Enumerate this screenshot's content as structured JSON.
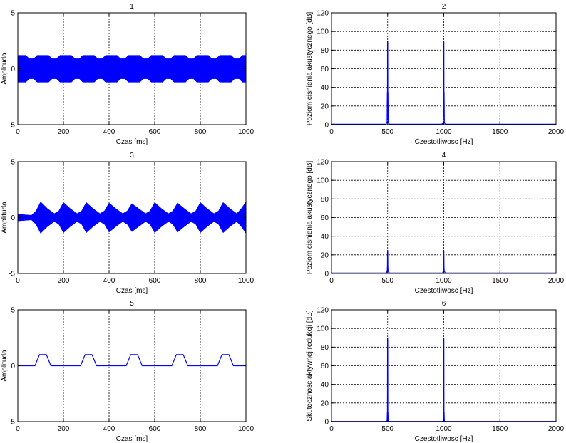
{
  "chart_data": [
    {
      "type": "line",
      "title": "1",
      "xlabel": "Czas [ms]",
      "ylabel": "Amplituda",
      "xlim": [
        0,
        1000
      ],
      "ylim": [
        -5,
        5
      ],
      "xticks": [
        0,
        200,
        400,
        600,
        800,
        1000
      ],
      "yticks": [
        -5,
        0,
        5
      ],
      "grid": "x-only",
      "series": [
        {
          "color": "#0000ff",
          "style": "dense-oscillation-envelope",
          "envelope_upper": [
            [
              0,
              1.2
            ],
            [
              35,
              1.2
            ],
            [
              50,
              0.9
            ],
            [
              70,
              0.9
            ],
            [
              85,
              1.2
            ],
            [
              135,
              1.2
            ],
            [
              150,
              0.9
            ],
            [
              170,
              0.9
            ],
            [
              185,
              1.2
            ],
            [
              235,
              1.2
            ],
            [
              250,
              0.9
            ],
            [
              270,
              0.9
            ],
            [
              285,
              1.2
            ],
            [
              335,
              1.2
            ],
            [
              350,
              0.9
            ],
            [
              370,
              0.9
            ],
            [
              385,
              1.2
            ],
            [
              435,
              1.2
            ],
            [
              450,
              0.9
            ],
            [
              470,
              0.9
            ],
            [
              485,
              1.2
            ],
            [
              535,
              1.2
            ],
            [
              550,
              0.9
            ],
            [
              570,
              0.9
            ],
            [
              585,
              1.2
            ],
            [
              635,
              1.2
            ],
            [
              650,
              0.9
            ],
            [
              670,
              0.9
            ],
            [
              685,
              1.2
            ],
            [
              735,
              1.2
            ],
            [
              750,
              0.9
            ],
            [
              770,
              0.9
            ],
            [
              785,
              1.2
            ],
            [
              835,
              1.2
            ],
            [
              850,
              0.9
            ],
            [
              870,
              0.9
            ],
            [
              885,
              1.2
            ],
            [
              935,
              1.2
            ],
            [
              950,
              0.9
            ],
            [
              970,
              0.9
            ],
            [
              985,
              1.2
            ],
            [
              1000,
              1.2
            ]
          ]
        }
      ]
    },
    {
      "type": "line",
      "title": "2",
      "xlabel": "Czestotliwosc [Hz]",
      "ylabel": "Poziom cisnienia akustycznego [dB]",
      "xlim": [
        0,
        2000
      ],
      "ylim": [
        0,
        120
      ],
      "xticks": [
        0,
        500,
        1000,
        1500,
        2000
      ],
      "yticks": [
        0,
        20,
        40,
        60,
        80,
        100,
        120
      ],
      "grid": "both",
      "series": [
        {
          "color": "#0000ff",
          "points": [
            [
              0,
              0.5
            ],
            [
              480,
              0.5
            ],
            [
              488,
              1
            ],
            [
              492,
              2
            ],
            [
              495,
              3
            ],
            [
              497,
              35
            ],
            [
              498,
              8
            ],
            [
              499,
              88
            ],
            [
              500,
              90
            ],
            [
              501,
              88
            ],
            [
              502,
              10
            ],
            [
              503,
              35
            ],
            [
              505,
              3
            ],
            [
              510,
              1
            ],
            [
              520,
              0.5
            ],
            [
              980,
              0.5
            ],
            [
              988,
              1
            ],
            [
              992,
              2
            ],
            [
              995,
              3
            ],
            [
              997,
              35
            ],
            [
              998,
              8
            ],
            [
              999,
              88
            ],
            [
              1000,
              90
            ],
            [
              1001,
              88
            ],
            [
              1002,
              10
            ],
            [
              1003,
              35
            ],
            [
              1005,
              3
            ],
            [
              1010,
              1
            ],
            [
              1020,
              0.5
            ],
            [
              2000,
              0.5
            ]
          ]
        }
      ]
    },
    {
      "type": "line",
      "title": "3",
      "xlabel": "Czas [ms]",
      "ylabel": "Amplituda",
      "xlim": [
        0,
        1000
      ],
      "ylim": [
        -5,
        5
      ],
      "xticks": [
        0,
        200,
        400,
        600,
        800,
        1000
      ],
      "yticks": [
        -5,
        0,
        5
      ],
      "grid": "x-only",
      "series": [
        {
          "color": "#0000ff",
          "style": "dense-oscillation-envelope",
          "envelope_upper": [
            [
              0,
              0.3
            ],
            [
              30,
              0.25
            ],
            [
              60,
              0.2
            ],
            [
              80,
              0.6
            ],
            [
              100,
              1.4
            ],
            [
              130,
              0.8
            ],
            [
              160,
              0.35
            ],
            [
              180,
              0.6
            ],
            [
              200,
              1.35
            ],
            [
              230,
              0.8
            ],
            [
              260,
              0.35
            ],
            [
              280,
              0.6
            ],
            [
              300,
              1.35
            ],
            [
              330,
              0.8
            ],
            [
              360,
              0.35
            ],
            [
              380,
              0.6
            ],
            [
              400,
              1.3
            ],
            [
              430,
              0.8
            ],
            [
              460,
              0.35
            ],
            [
              480,
              0.6
            ],
            [
              500,
              1.25
            ],
            [
              530,
              0.8
            ],
            [
              560,
              0.35
            ],
            [
              580,
              0.6
            ],
            [
              600,
              1.35
            ],
            [
              630,
              0.8
            ],
            [
              660,
              0.35
            ],
            [
              680,
              0.6
            ],
            [
              700,
              1.3
            ],
            [
              730,
              0.8
            ],
            [
              760,
              0.35
            ],
            [
              780,
              0.6
            ],
            [
              800,
              1.35
            ],
            [
              830,
              0.8
            ],
            [
              860,
              0.35
            ],
            [
              880,
              0.6
            ],
            [
              900,
              1.35
            ],
            [
              930,
              0.8
            ],
            [
              960,
              0.35
            ],
            [
              980,
              0.8
            ],
            [
              1000,
              1.4
            ]
          ]
        }
      ]
    },
    {
      "type": "line",
      "title": "4",
      "xlabel": "Czestotliwosc [Hz]",
      "ylabel": "Poziom cisnienia akustycznego [dB]",
      "xlim": [
        0,
        2000
      ],
      "ylim": [
        0,
        120
      ],
      "xticks": [
        0,
        500,
        1000,
        1500,
        2000
      ],
      "yticks": [
        0,
        20,
        40,
        60,
        80,
        100,
        120
      ],
      "grid": "both",
      "series": [
        {
          "color": "#0000ff",
          "points": [
            [
              0,
              0.5
            ],
            [
              485,
              0.5
            ],
            [
              492,
              1
            ],
            [
              496,
              3
            ],
            [
              498,
              8
            ],
            [
              499,
              24
            ],
            [
              500,
              25
            ],
            [
              501,
              24
            ],
            [
              502,
              8
            ],
            [
              504,
              3
            ],
            [
              510,
              1
            ],
            [
              520,
              0.5
            ],
            [
              985,
              0.5
            ],
            [
              992,
              1
            ],
            [
              996,
              3
            ],
            [
              998,
              8
            ],
            [
              999,
              24
            ],
            [
              1000,
              25
            ],
            [
              1001,
              24
            ],
            [
              1002,
              8
            ],
            [
              1004,
              3
            ],
            [
              1010,
              1
            ],
            [
              1020,
              0.5
            ],
            [
              2000,
              0.5
            ]
          ]
        }
      ]
    },
    {
      "type": "line",
      "title": "5",
      "xlabel": "Czas [ms]",
      "ylabel": "Amplituda",
      "xlim": [
        0,
        1000
      ],
      "ylim": [
        -5,
        5
      ],
      "xticks": [
        0,
        200,
        400,
        600,
        800,
        1000
      ],
      "yticks": [
        -5,
        0,
        5
      ],
      "grid": "x-only",
      "series": [
        {
          "color": "#0000ff",
          "points": [
            [
              0,
              0
            ],
            [
              75,
              0
            ],
            [
              85,
              0.5
            ],
            [
              95,
              1
            ],
            [
              125,
              1
            ],
            [
              135,
              0.5
            ],
            [
              145,
              0
            ],
            [
              190,
              0
            ],
            [
              200,
              0
            ],
            [
              275,
              0
            ],
            [
              285,
              0.5
            ],
            [
              295,
              1
            ],
            [
              325,
              1
            ],
            [
              335,
              0.5
            ],
            [
              345,
              0
            ],
            [
              390,
              0
            ],
            [
              400,
              0
            ],
            [
              475,
              0
            ],
            [
              485,
              0.5
            ],
            [
              495,
              1
            ],
            [
              525,
              1
            ],
            [
              535,
              0.5
            ],
            [
              545,
              0
            ],
            [
              590,
              0
            ],
            [
              600,
              0
            ],
            [
              675,
              0
            ],
            [
              685,
              0.5
            ],
            [
              695,
              1
            ],
            [
              725,
              1
            ],
            [
              735,
              0.5
            ],
            [
              745,
              0
            ],
            [
              790,
              0
            ],
            [
              800,
              0
            ],
            [
              875,
              0
            ],
            [
              885,
              0.5
            ],
            [
              895,
              1
            ],
            [
              925,
              1
            ],
            [
              935,
              0.5
            ],
            [
              945,
              0
            ],
            [
              1000,
              0
            ]
          ]
        }
      ]
    },
    {
      "type": "line",
      "title": "6",
      "xlabel": "Czestotliwosc [Hz]",
      "ylabel": "Skutecznosc aktywnej redukcji [dB]",
      "xlim": [
        0,
        2000
      ],
      "ylim": [
        0,
        120
      ],
      "xticks": [
        0,
        500,
        1000,
        1500,
        2000
      ],
      "yticks": [
        0,
        20,
        40,
        60,
        80,
        100,
        120
      ],
      "grid": "both",
      "series": [
        {
          "color": "#0000ff",
          "points": [
            [
              0,
              0.2
            ],
            [
              490,
              0.2
            ],
            [
              495,
              1
            ],
            [
              497,
              10
            ],
            [
              498,
              3
            ],
            [
              499,
              88
            ],
            [
              500,
              90
            ],
            [
              501,
              88
            ],
            [
              502,
              3
            ],
            [
              503,
              10
            ],
            [
              505,
              1
            ],
            [
              510,
              0.2
            ],
            [
              990,
              0.2
            ],
            [
              995,
              1
            ],
            [
              997,
              10
            ],
            [
              998,
              3
            ],
            [
              999,
              88
            ],
            [
              1000,
              90
            ],
            [
              1001,
              88
            ],
            [
              1002,
              3
            ],
            [
              1003,
              10
            ],
            [
              1005,
              1
            ],
            [
              1010,
              0.2
            ],
            [
              2000,
              0.2
            ]
          ]
        }
      ]
    }
  ]
}
